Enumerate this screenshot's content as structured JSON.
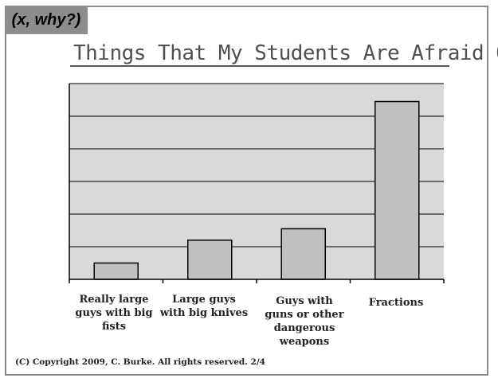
{
  "badge": {
    "text": "(x, why?)"
  },
  "footer": {
    "copyright": "(C) Copyright 2009, C. Burke. All rights reserved. 2/4"
  },
  "colors": {
    "plot_background": "#d9d9d9",
    "bar_fill": "#c0c0c0",
    "bar_stroke": "#000000",
    "gridline": "#000000",
    "badge_background": "#8d8d8d",
    "frame": "#8a8a8a"
  },
  "chart_data": {
    "type": "bar",
    "title": "Things That My Students Are Afraid Of",
    "xlabel": "",
    "ylabel": "",
    "categories": [
      "Really large guys with big fists",
      "Large guys with big knives",
      "Guys with guns or other dangerous weapons",
      "Fractions"
    ],
    "values": [
      0.5,
      1.2,
      1.55,
      5.45
    ],
    "ylim": [
      0,
      6
    ],
    "y_tick_labels_shown": false,
    "grid": true,
    "legend": "none"
  }
}
